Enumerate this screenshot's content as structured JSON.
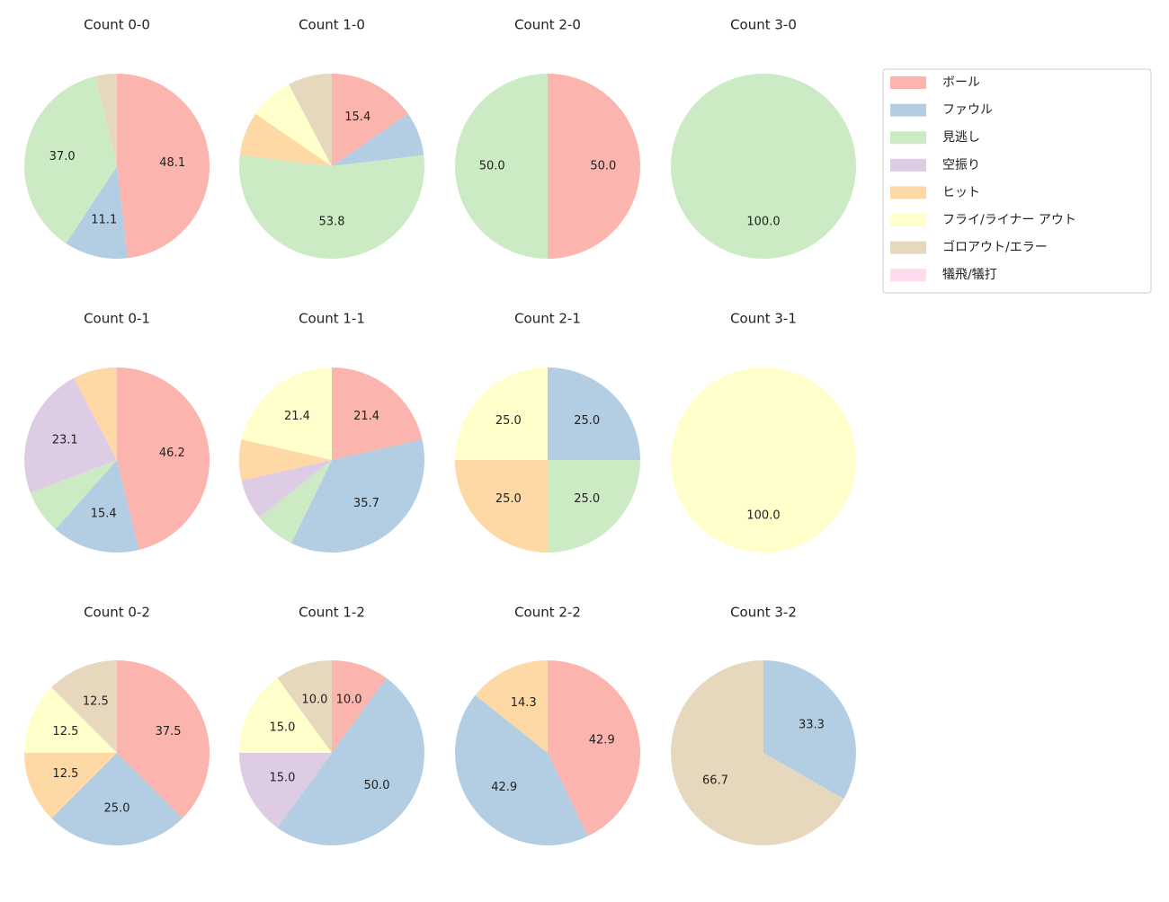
{
  "legend": {
    "labels": [
      "ボール",
      "ファウル",
      "見逃し",
      "空振り",
      "ヒット",
      "フライ/ライナー アウト",
      "ゴロアウト/エラー",
      "犠飛/犠打"
    ],
    "colors": [
      "#fbb4ae",
      "#b3cde3",
      "#ccebc5",
      "#decbe4",
      "#fed9a6",
      "#ffffcc",
      "#e5d8bd",
      "#fddaec"
    ]
  },
  "chart_data": [
    {
      "type": "pie",
      "title": "Count 0-0",
      "values": [
        48.1,
        11.1,
        37.0,
        0,
        0,
        0,
        3.7,
        0
      ]
    },
    {
      "type": "pie",
      "title": "Count 1-0",
      "values": [
        15.4,
        7.7,
        53.8,
        0,
        7.7,
        7.7,
        7.7,
        0
      ]
    },
    {
      "type": "pie",
      "title": "Count 2-0",
      "values": [
        50.0,
        0,
        50.0,
        0,
        0,
        0,
        0,
        0
      ]
    },
    {
      "type": "pie",
      "title": "Count 3-0",
      "values": [
        0,
        0,
        100.0,
        0,
        0,
        0,
        0,
        0
      ]
    },
    {
      "type": "pie",
      "title": "Count 0-1",
      "values": [
        46.2,
        15.4,
        7.7,
        23.1,
        7.7,
        0,
        0,
        0
      ]
    },
    {
      "type": "pie",
      "title": "Count 1-1",
      "values": [
        21.4,
        35.7,
        7.1,
        7.1,
        7.1,
        21.4,
        0,
        0
      ]
    },
    {
      "type": "pie",
      "title": "Count 2-1",
      "values": [
        0,
        25.0,
        25.0,
        0,
        25.0,
        25.0,
        0,
        0
      ]
    },
    {
      "type": "pie",
      "title": "Count 3-1",
      "values": [
        0,
        0,
        0,
        0,
        0,
        100.0,
        0,
        0
      ]
    },
    {
      "type": "pie",
      "title": "Count 0-2",
      "values": [
        37.5,
        25.0,
        0,
        0,
        12.5,
        12.5,
        12.5,
        0
      ]
    },
    {
      "type": "pie",
      "title": "Count 1-2",
      "values": [
        10.0,
        50.0,
        0,
        15.0,
        0,
        15.0,
        10.0,
        0
      ]
    },
    {
      "type": "pie",
      "title": "Count 2-2",
      "values": [
        42.9,
        42.9,
        0,
        0,
        14.3,
        0,
        0,
        0
      ]
    },
    {
      "type": "pie",
      "title": "Count 3-2",
      "values": [
        0,
        33.3,
        0,
        0,
        0,
        0,
        66.7,
        0
      ]
    }
  ]
}
